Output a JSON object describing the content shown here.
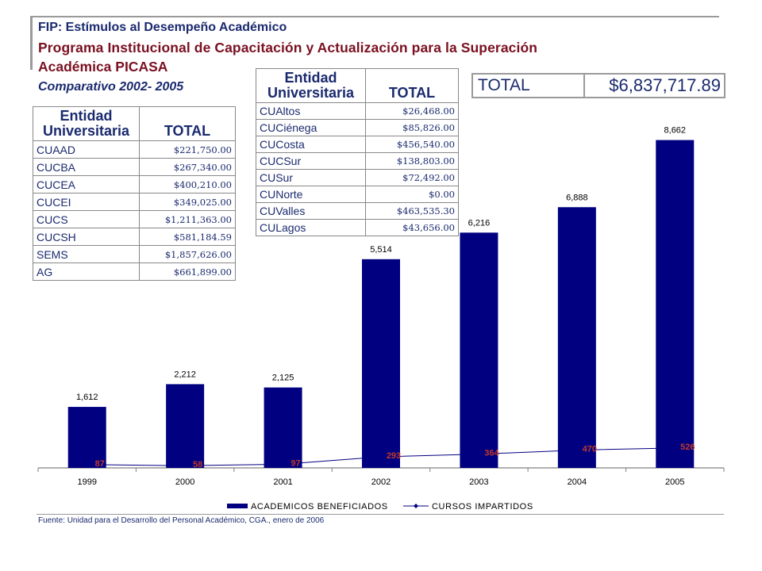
{
  "header": {
    "title1": "FIP: Estímulos al Desempeño Académico",
    "title2": "Programa Institucional de Capacitación y Actualización para la Superación",
    "title3": "Académica PICASA",
    "subtitle": "Comparativo 2002- 2005"
  },
  "table1": {
    "head_entity_1": "Entidad",
    "head_entity_2": "Universitaria",
    "head_total": "TOTAL",
    "rows": [
      {
        "name": "CUAAD",
        "total": "$221,750.00"
      },
      {
        "name": "CUCBA",
        "total": "$267,340.00"
      },
      {
        "name": "CUCEA",
        "total": "$400,210.00"
      },
      {
        "name": "CUCEI",
        "total": "$349,025.00"
      },
      {
        "name": "CUCS",
        "total": "$1,211,363.00"
      },
      {
        "name": "CUCSH",
        "total": "$581,184.59"
      },
      {
        "name": "SEMS",
        "total": "$1,857,626.00"
      },
      {
        "name": "AG",
        "total": "$661,899.00"
      }
    ]
  },
  "table2": {
    "head_entity_1": "Entidad",
    "head_entity_2": "Universitaria",
    "head_total": "TOTAL",
    "rows": [
      {
        "name": "CUAltos",
        "total": "$26,468.00"
      },
      {
        "name": "CUCiénega",
        "total": "$85,826.00"
      },
      {
        "name": "CUCosta",
        "total": "$456,540.00"
      },
      {
        "name": "CUCSur",
        "total": "$138,803.00"
      },
      {
        "name": "CUSur",
        "total": "$72,492.00"
      },
      {
        "name": "CUNorte",
        "total": "$0.00"
      },
      {
        "name": "CUValles",
        "total": "$463,535.30"
      },
      {
        "name": "CULagos",
        "total": "$43,656.00"
      }
    ]
  },
  "grand_total": {
    "label": "TOTAL",
    "value": "$6,837,717.89"
  },
  "source": "Fuente: Unidad para el Desarrollo del Personal Académico, CGA., enero de 2006",
  "colors": {
    "bar": "#000080",
    "line": "#000080",
    "line_label": "#c0392b",
    "text": "#1a2a6e"
  },
  "chart_data": {
    "type": "bar",
    "categories": [
      "1999",
      "2000",
      "2001",
      "2002",
      "2003",
      "2004",
      "2005"
    ],
    "ylim": [
      0,
      8800
    ],
    "series": [
      {
        "name": "ACADEMICOS BENEFICIADOS",
        "kind": "bar",
        "values": [
          1612,
          2212,
          2125,
          5514,
          6216,
          6888,
          8662
        ],
        "labels": [
          "1,612",
          "2,212",
          "2,125",
          "5,514",
          "6,216",
          "6,888",
          "8,662"
        ]
      },
      {
        "name": "CURSOS IMPARTIDOS",
        "kind": "line",
        "values": [
          87,
          58,
          97,
          293,
          364,
          470,
          526
        ],
        "labels": [
          "87",
          "58",
          "97",
          "293",
          "364",
          "470",
          "526"
        ]
      }
    ],
    "legend_position": "bottom"
  }
}
